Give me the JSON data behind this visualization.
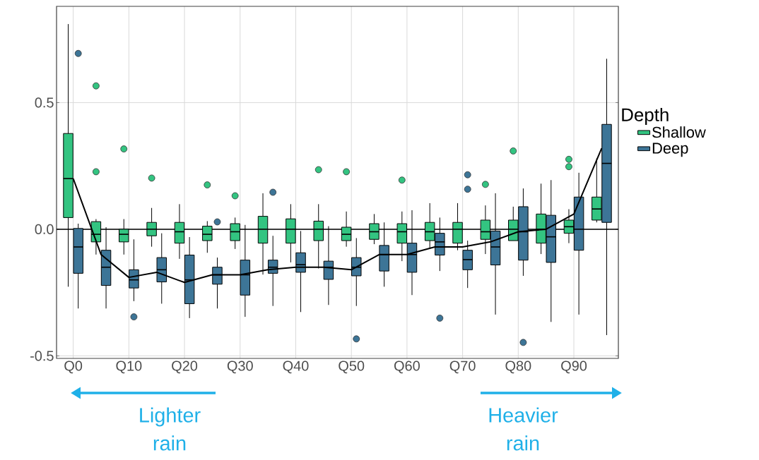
{
  "chart_data": {
    "type": "box",
    "categories": [
      "Q0",
      null,
      "Q10",
      null,
      "Q20",
      null,
      "Q30",
      null,
      "Q40",
      null,
      "Q50",
      null,
      "Q60",
      null,
      "Q70",
      null,
      "Q80",
      null,
      "Q90",
      null
    ],
    "ylim": [
      -0.51,
      0.88
    ],
    "yticks": [
      -0.5,
      {
        "value": 0,
        "label": "0.0"
      },
      0.5
    ],
    "grid": true,
    "legend": "right",
    "legend_title": "Depth",
    "series": [
      {
        "name": "Shallow",
        "color": "#33c481",
        "boxes": [
          {
            "low": -0.227,
            "q1": 0.046,
            "median": 0.2,
            "q3": 0.378,
            "high": 0.81
          },
          {
            "low": -0.1,
            "q1": -0.05,
            "median": -0.02,
            "q3": 0.03,
            "high": 0.04,
            "outliers": [
              0.566,
              0.227
            ]
          },
          {
            "low": -0.1,
            "q1": -0.05,
            "median": -0.02,
            "q3": 0.0,
            "high": 0.04,
            "outliers": [
              0.317
            ]
          },
          {
            "low": -0.069,
            "q1": -0.026,
            "median": 0.0,
            "q3": 0.027,
            "high": 0.084,
            "outliers": [
              0.202
            ]
          },
          {
            "low": -0.117,
            "q1": -0.055,
            "median": -0.01,
            "q3": 0.027,
            "high": 0.099
          },
          {
            "low": -0.093,
            "q1": -0.045,
            "median": -0.02,
            "q3": 0.012,
            "high": 0.032,
            "outliers": [
              0.175
            ]
          },
          {
            "low": -0.078,
            "q1": -0.045,
            "median": -0.01,
            "q3": 0.022,
            "high": 0.046,
            "outliers": [
              0.132
            ]
          },
          {
            "low": -0.179,
            "q1": -0.055,
            "median": 0.0,
            "q3": 0.051,
            "high": 0.142
          },
          {
            "low": -0.131,
            "q1": -0.055,
            "median": 0.0,
            "q3": 0.041,
            "high": 0.099
          },
          {
            "low": -0.155,
            "q1": -0.045,
            "median": 0.0,
            "q3": 0.032,
            "high": 0.099,
            "outliers": [
              0.235
            ]
          },
          {
            "low": -0.069,
            "q1": -0.045,
            "median": -0.02,
            "q3": 0.008,
            "high": 0.07,
            "outliers": [
              0.227
            ]
          },
          {
            "low": -0.059,
            "q1": -0.04,
            "median": -0.01,
            "q3": 0.022,
            "high": 0.06
          },
          {
            "low": -0.126,
            "q1": -0.055,
            "median": -0.01,
            "q3": 0.022,
            "high": 0.07,
            "outliers": [
              0.194
            ]
          },
          {
            "low": -0.074,
            "q1": -0.045,
            "median": -0.01,
            "q3": 0.027,
            "high": 0.103
          },
          {
            "low": -0.083,
            "q1": -0.055,
            "median": 0.0,
            "q3": 0.027,
            "high": 0.103
          },
          {
            "low": -0.098,
            "q1": -0.04,
            "median": -0.01,
            "q3": 0.036,
            "high": 0.094,
            "outliers": [
              0.177
            ]
          },
          {
            "low": -0.045,
            "q1": -0.045,
            "median": 0.0,
            "q3": 0.036,
            "high": 0.089,
            "outliers": [
              0.309
            ]
          },
          {
            "low": -0.098,
            "q1": -0.055,
            "median": 0.0,
            "q3": 0.06,
            "high": 0.18
          },
          {
            "low": -0.055,
            "q1": -0.016,
            "median": 0.01,
            "q3": 0.036,
            "high": 0.079,
            "outliers": [
              0.276,
              0.247
            ]
          },
          {
            "low": 0.027,
            "q1": 0.036,
            "median": 0.08,
            "q3": 0.127,
            "high": 0.28
          }
        ]
      },
      {
        "name": "Deep",
        "color": "#3d7597",
        "boxes": [
          {
            "low": -0.313,
            "q1": -0.174,
            "median": -0.07,
            "q3": 0.003,
            "high": 0.022,
            "outliers": [
              0.694
            ]
          },
          {
            "low": -0.313,
            "q1": -0.222,
            "median": -0.15,
            "q3": -0.083,
            "high": 0.008
          },
          {
            "low": -0.284,
            "q1": -0.232,
            "median": -0.2,
            "q3": -0.16,
            "high": -0.04,
            "outliers": [
              -0.346
            ]
          },
          {
            "low": -0.294,
            "q1": -0.208,
            "median": -0.16,
            "q3": -0.112,
            "high": -0.016
          },
          {
            "low": -0.351,
            "q1": -0.294,
            "median": -0.2,
            "q3": -0.102,
            "high": -0.031
          },
          {
            "low": -0.313,
            "q1": -0.217,
            "median": -0.18,
            "q3": -0.15,
            "high": -0.112,
            "outliers": [
              0.029
            ]
          },
          {
            "low": -0.346,
            "q1": -0.26,
            "median": -0.18,
            "q3": -0.122,
            "high": 0.017
          },
          {
            "low": -0.303,
            "q1": -0.174,
            "median": -0.15,
            "q3": -0.122,
            "high": -0.026,
            "outliers": [
              0.146
            ]
          },
          {
            "low": -0.327,
            "q1": -0.17,
            "median": -0.14,
            "q3": -0.093,
            "high": -0.007
          },
          {
            "low": -0.299,
            "q1": -0.198,
            "median": -0.15,
            "q3": -0.126,
            "high": 0.012
          },
          {
            "low": -0.303,
            "q1": -0.184,
            "median": -0.15,
            "q3": -0.112,
            "high": -0.035,
            "outliers": [
              -0.433
            ]
          },
          {
            "low": -0.227,
            "q1": -0.165,
            "median": -0.1,
            "q3": -0.064,
            "high": 0.027
          },
          {
            "low": -0.26,
            "q1": -0.17,
            "median": -0.1,
            "q3": -0.055,
            "high": 0.075
          },
          {
            "low": -0.165,
            "q1": -0.102,
            "median": -0.05,
            "q3": -0.016,
            "high": 0.046,
            "outliers": [
              -0.351
            ]
          },
          {
            "low": -0.232,
            "q1": -0.16,
            "median": -0.12,
            "q3": -0.083,
            "high": -0.045,
            "outliers": [
              0.215,
              0.158
            ]
          },
          {
            "low": -0.337,
            "q1": -0.141,
            "median": -0.07,
            "q3": -0.007,
            "high": 0.142
          },
          {
            "low": -0.184,
            "q1": -0.122,
            "median": -0.01,
            "q3": 0.089,
            "high": 0.161,
            "outliers": [
              -0.447
            ]
          },
          {
            "low": -0.366,
            "q1": -0.131,
            "median": -0.03,
            "q3": 0.055,
            "high": 0.194
          },
          {
            "low": -0.337,
            "q1": -0.083,
            "median": 0.0,
            "q3": 0.127,
            "high": 0.223
          },
          {
            "low": -0.418,
            "q1": 0.027,
            "median": 0.26,
            "q3": 0.414,
            "high": 0.673
          }
        ]
      },
      {
        "type": "line",
        "color": "#000000",
        "values": [
          0.2,
          -0.1,
          -0.19,
          -0.17,
          -0.21,
          -0.18,
          -0.18,
          -0.16,
          -0.15,
          -0.15,
          -0.16,
          -0.1,
          -0.1,
          -0.07,
          -0.07,
          -0.05,
          -0.01,
          0.0,
          0.06,
          0.32
        ]
      }
    ],
    "ref_lines": [
      {
        "axis": "y",
        "value": 0,
        "color": "#000000"
      }
    ],
    "annotations": [
      "Lighter rain",
      "Heavier rain"
    ]
  }
}
